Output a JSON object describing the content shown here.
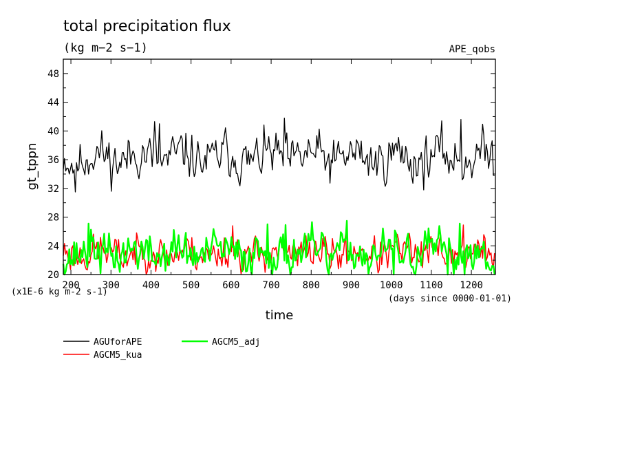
{
  "chart_data": {
    "type": "line",
    "title": "total precipitation flux",
    "units": "(kg m−2 s−1)",
    "experiment": "APE_qobs",
    "ylabel": "gt_tppn",
    "xlabel": "time",
    "y_scale_note": "(x1E-6 kg m-2 s-1)",
    "x_units_note": "(days since 0000-01-01)",
    "xlim": [
      181,
      1260
    ],
    "ylim": [
      20,
      50
    ],
    "x_ticks": [
      200,
      300,
      400,
      500,
      600,
      700,
      800,
      900,
      1000,
      1100,
      1200
    ],
    "y_ticks": [
      20,
      24,
      28,
      32,
      36,
      40,
      44,
      48
    ],
    "x_step_days": 3,
    "series": [
      {
        "name": "AGUforAPE",
        "color": "#000000",
        "mean": 36.3,
        "amplitude": 1.4,
        "noise": 1.5,
        "seed": 11,
        "notable": [
          [
            196,
            34.0
          ],
          [
            212,
            31.5
          ],
          [
            410,
            41.3
          ],
          [
            420,
            41.0
          ],
          [
            734,
            41.8
          ],
          [
            1175,
            41.6
          ],
          [
            1260,
            33.8
          ]
        ]
      },
      {
        "name": "AGCM5_kua",
        "color": "#ff0000",
        "mean": 23.0,
        "amplitude": 0.9,
        "noise": 1.15,
        "seed": 23,
        "notable": [
          [
            605,
            26.8
          ],
          [
            1140,
            20.3
          ],
          [
            1180,
            26.9
          ]
        ]
      },
      {
        "name": "AGCM5_adj",
        "color": "#00ff00",
        "mean": 23.0,
        "amplitude": 1.1,
        "noise": 1.35,
        "seed": 37,
        "notable": [
          [
            244,
            27.1
          ],
          [
            690,
            27.0
          ],
          [
            736,
            26.9
          ],
          [
            1170,
            27.1
          ],
          [
            845,
            20.0
          ],
          [
            1005,
            20.0
          ],
          [
            1140,
            20.0
          ]
        ]
      }
    ]
  }
}
